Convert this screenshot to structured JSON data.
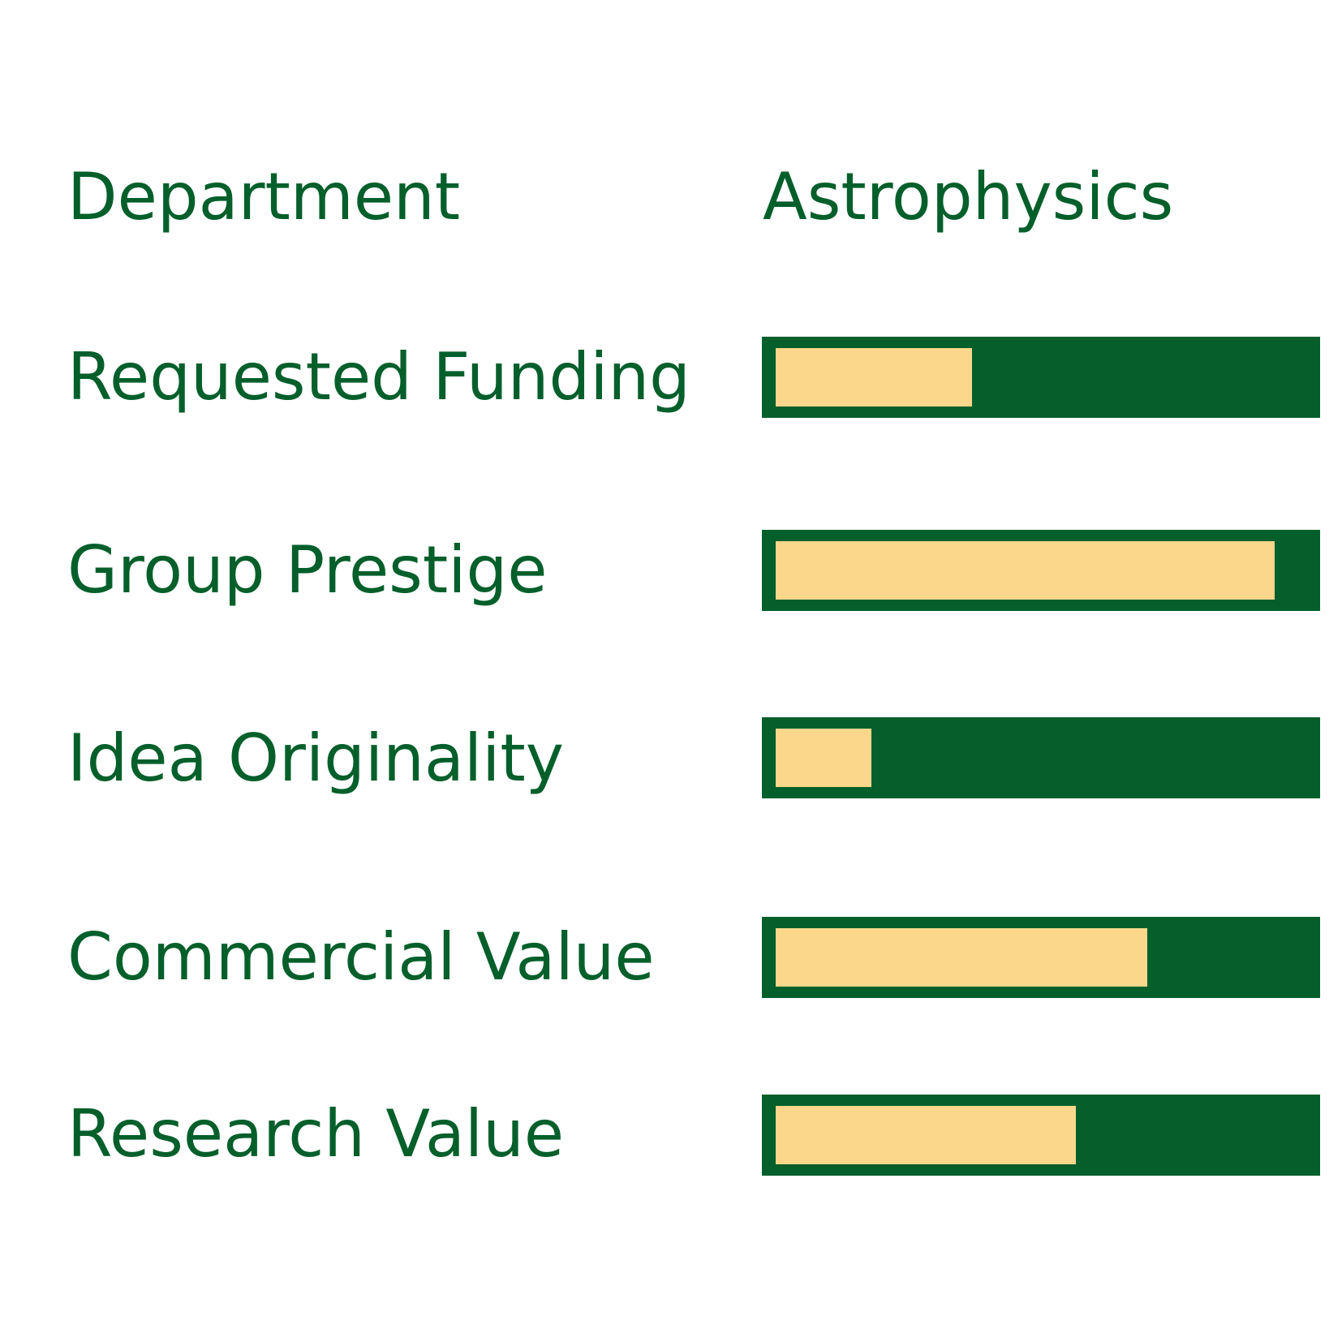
{
  "colors": {
    "text": "#045f2b",
    "track": "#045f2b",
    "fill": "#fad78b",
    "background": "#ffffff"
  },
  "department": {
    "label": "Department",
    "value": "Astrophysics"
  },
  "metrics": [
    {
      "label": "Requested Funding",
      "level": 0.37
    },
    {
      "label": "Group Prestige",
      "level": 0.94
    },
    {
      "label": "Idea Originality",
      "level": 0.18
    },
    {
      "label": "Commercial Value",
      "level": 0.7
    },
    {
      "label": "Research Value",
      "level": 0.565
    }
  ]
}
